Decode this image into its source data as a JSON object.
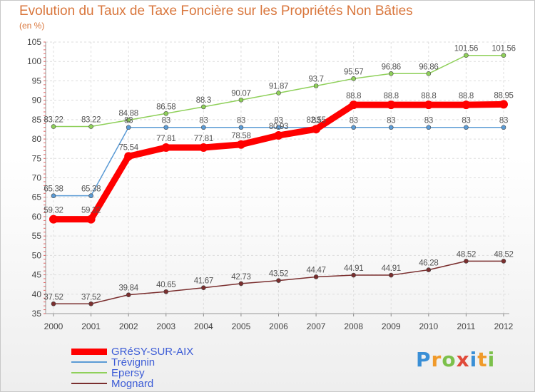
{
  "header": {
    "title": "Evolution du Taux de Taxe Foncière sur les Propriétés Non Bâties",
    "unit": "(en %)"
  },
  "logo": {
    "letters": [
      "P",
      "r",
      "o",
      "x",
      "i",
      "t",
      "i"
    ],
    "colors": [
      "#3a8fd6",
      "#f09a2a",
      "#7cc04b",
      "#e04a3a",
      "#3a8fd6",
      "#f09a2a",
      "#7cc04b"
    ]
  },
  "chart_data": {
    "type": "line",
    "title": "Evolution du Taux de Taxe Foncière sur les Propriétés Non Bâties",
    "ylabel": "(en %)",
    "x": [
      "2000",
      "2001",
      "2002",
      "2003",
      "2004",
      "2005",
      "2006",
      "2007",
      "2008",
      "2009",
      "2010",
      "2011",
      "2012"
    ],
    "ylim": [
      35,
      105
    ],
    "yticks": [
      35,
      40,
      45,
      50,
      55,
      60,
      65,
      70,
      75,
      80,
      85,
      90,
      95,
      100,
      105
    ],
    "grid": true,
    "legend_position": "bottom-left",
    "series": [
      {
        "name": "GRéSY-SUR-AIX",
        "color": "#ff0000",
        "values": [
          59.32,
          59.32,
          75.54,
          77.81,
          77.81,
          78.58,
          80.93,
          82.55,
          88.8,
          88.8,
          88.8,
          88.8,
          88.95
        ],
        "labels": [
          "59.32",
          "59.32",
          "75.54",
          "77.81",
          "77.81",
          "78.58",
          "80.93",
          "82.55",
          "88.8",
          "88.8",
          "88.8",
          "88.8",
          "88.95"
        ]
      },
      {
        "name": "Trévignin",
        "color": "#5b9bd5",
        "values": [
          65.38,
          65.38,
          83,
          83,
          83,
          83,
          83,
          83,
          83,
          83,
          83,
          83,
          83
        ],
        "labels": [
          "65.38",
          "65.38",
          "83",
          "83",
          "83",
          "83",
          "83",
          "83",
          "83",
          "83",
          "83",
          "83",
          "83"
        ]
      },
      {
        "name": "Epersy",
        "color": "#8fd05a",
        "values": [
          83.22,
          83.22,
          84.88,
          86.58,
          88.3,
          90.07,
          91.87,
          93.7,
          95.57,
          96.86,
          96.86,
          101.56,
          101.56
        ],
        "labels": [
          "83.22",
          "83.22",
          "84.88",
          "86.58",
          "88.3",
          "90.07",
          "91.87",
          "93.7",
          "95.57",
          "96.86",
          "96.86",
          "101.56",
          "101.56"
        ]
      },
      {
        "name": "Mognard",
        "color": "#7a2e2e",
        "values": [
          37.52,
          37.52,
          39.84,
          40.65,
          41.67,
          42.73,
          43.52,
          44.47,
          44.91,
          44.91,
          46.28,
          48.52,
          48.52
        ],
        "labels": [
          "37.52",
          "37.52",
          "39.84",
          "40.65",
          "41.67",
          "42.73",
          "43.52",
          "44.47",
          "44.91",
          "44.91",
          "46.28",
          "48.52",
          "48.52"
        ]
      }
    ]
  }
}
